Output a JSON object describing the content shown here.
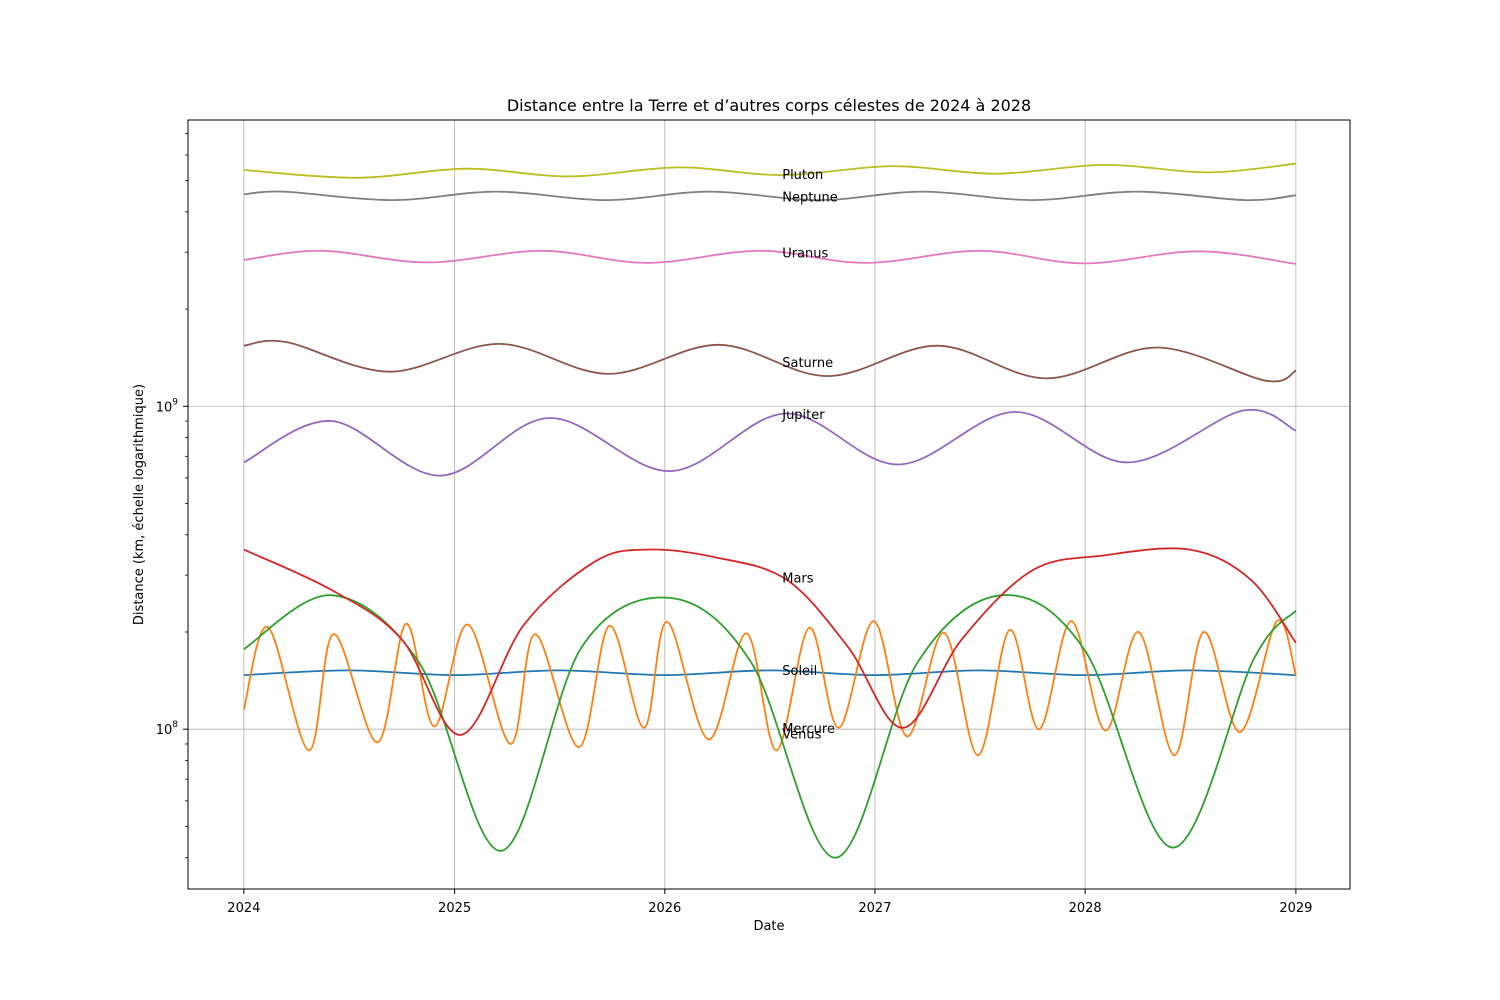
{
  "chart_data": {
    "type": "line",
    "title": "Distance entre la Terre et d’autres corps célestes de 2024 à 2028",
    "xlabel": "Date",
    "ylabel": "Distance (km, échelle logarithmique)",
    "x_axis": {
      "type": "date",
      "range": [
        "2023-09-26",
        "2029-04-05"
      ],
      "ticks": [
        "2024-01-01",
        "2025-01-01",
        "2026-01-01",
        "2027-01-01",
        "2028-01-01",
        "2029-01-01"
      ],
      "tick_labels": [
        "2024",
        "2025",
        "2026",
        "2027",
        "2028",
        "2029"
      ]
    },
    "y_axis": {
      "scale": "log",
      "range": [
        32000000,
        7700000000
      ],
      "major_ticks": [
        100000000,
        1000000000
      ],
      "tick_labels": [
        "10^8",
        "10^9"
      ]
    },
    "grid": true,
    "legend": "none",
    "label_date": "2026-07-24",
    "series": [
      {
        "name": "Soleil",
        "color": "#1f77b4",
        "points": [
          [
            "2024-01-01",
            147100000
          ],
          [
            "2024-07-01",
            152100000
          ],
          [
            "2025-01-01",
            147100000
          ],
          [
            "2025-07-01",
            152100000
          ],
          [
            "2026-01-01",
            147100000
          ],
          [
            "2026-07-01",
            152100000
          ],
          [
            "2027-01-01",
            147100000
          ],
          [
            "2027-07-01",
            152100000
          ],
          [
            "2028-01-01",
            147100000
          ],
          [
            "2028-07-01",
            152100000
          ],
          [
            "2029-01-01",
            147100000
          ]
        ]
      },
      {
        "name": "Mercure",
        "color": "#ff7f0e",
        "points": [
          [
            "2024-01-01",
            115000000
          ],
          [
            "2024-02-12",
            207000000
          ],
          [
            "2024-04-23",
            86000000
          ],
          [
            "2024-06-05",
            197000000
          ],
          [
            "2024-08-20",
            91000000
          ],
          [
            "2024-10-09",
            212000000
          ],
          [
            "2024-11-27",
            102000000
          ],
          [
            "2025-01-24",
            211000000
          ],
          [
            "2025-04-08",
            90000000
          ],
          [
            "2025-05-21",
            197000000
          ],
          [
            "2025-08-05",
            88000000
          ],
          [
            "2025-09-27",
            209000000
          ],
          [
            "2025-11-26",
            101000000
          ],
          [
            "2026-01-05",
            215000000
          ],
          [
            "2026-03-18",
            93000000
          ],
          [
            "2026-05-23",
            198000000
          ],
          [
            "2026-07-14",
            86000000
          ],
          [
            "2026-09-09",
            206000000
          ],
          [
            "2026-10-30",
            101000000
          ],
          [
            "2026-12-30",
            216000000
          ],
          [
            "2027-02-26",
            95000000
          ],
          [
            "2027-05-01",
            199000000
          ],
          [
            "2027-06-29",
            83000000
          ],
          [
            "2027-08-23",
            203000000
          ],
          [
            "2027-10-13",
            100000000
          ],
          [
            "2027-12-08",
            216000000
          ],
          [
            "2028-02-05",
            99000000
          ],
          [
            "2028-04-03",
            200000000
          ],
          [
            "2028-06-04",
            83000000
          ],
          [
            "2028-07-25",
            200000000
          ],
          [
            "2028-09-26",
            98000000
          ],
          [
            "2028-11-29",
            216000000
          ],
          [
            "2029-01-01",
            147000000
          ]
        ]
      },
      {
        "name": "Vénus",
        "color": "#2ca02c",
        "points": [
          [
            "2024-01-01",
            177000000
          ],
          [
            "2024-06-01",
            260000000
          ],
          [
            "2024-11-01",
            160000000
          ],
          [
            "2025-03-23",
            42000000
          ],
          [
            "2025-08-10",
            180000000
          ],
          [
            "2026-01-10",
            255000000
          ],
          [
            "2026-06-01",
            160000000
          ],
          [
            "2026-10-24",
            40000000
          ],
          [
            "2027-03-15",
            160000000
          ],
          [
            "2027-08-10",
            260000000
          ],
          [
            "2028-01-01",
            175000000
          ],
          [
            "2028-06-01",
            43000000
          ],
          [
            "2028-10-20",
            165000000
          ],
          [
            "2029-01-01",
            233000000
          ]
        ]
      },
      {
        "name": "Mars",
        "color": "#d62728",
        "points": [
          [
            "2024-01-01",
            360000000
          ],
          [
            "2024-06-01",
            270000000
          ],
          [
            "2024-10-01",
            190000000
          ],
          [
            "2025-01-12",
            96000000
          ],
          [
            "2025-05-01",
            210000000
          ],
          [
            "2025-09-01",
            330000000
          ],
          [
            "2025-12-01",
            360000000
          ],
          [
            "2026-04-01",
            340000000
          ],
          [
            "2026-08-01",
            290000000
          ],
          [
            "2026-11-15",
            180000000
          ],
          [
            "2027-02-19",
            101000000
          ],
          [
            "2027-06-01",
            190000000
          ],
          [
            "2027-10-01",
            310000000
          ],
          [
            "2028-02-01",
            345000000
          ],
          [
            "2028-07-01",
            360000000
          ],
          [
            "2028-10-15",
            290000000
          ],
          [
            "2029-01-01",
            185000000
          ]
        ]
      },
      {
        "name": "Jupiter",
        "color": "#9467bd",
        "points": [
          [
            "2024-01-01",
            670000000
          ],
          [
            "2024-06-01",
            900000000
          ],
          [
            "2024-12-07",
            610000000
          ],
          [
            "2025-06-15",
            920000000
          ],
          [
            "2026-01-10",
            630000000
          ],
          [
            "2026-07-30",
            950000000
          ],
          [
            "2027-02-10",
            660000000
          ],
          [
            "2027-09-01",
            960000000
          ],
          [
            "2028-03-15",
            670000000
          ],
          [
            "2028-10-01",
            970000000
          ],
          [
            "2029-01-01",
            840000000
          ]
        ]
      },
      {
        "name": "Saturne",
        "color": "#8c564b",
        "points": [
          [
            "2024-01-01",
            1540000000
          ],
          [
            "2024-03-15",
            1580000000
          ],
          [
            "2024-09-10",
            1280000000
          ],
          [
            "2025-03-20",
            1560000000
          ],
          [
            "2025-09-25",
            1260000000
          ],
          [
            "2026-04-05",
            1550000000
          ],
          [
            "2026-10-10",
            1240000000
          ],
          [
            "2027-04-20",
            1540000000
          ],
          [
            "2027-10-25",
            1220000000
          ],
          [
            "2028-05-05",
            1520000000
          ],
          [
            "2028-11-10",
            1200000000
          ],
          [
            "2029-01-01",
            1290000000
          ]
        ]
      },
      {
        "name": "Uranus",
        "color": "#e377c2",
        "points": [
          [
            "2024-01-01",
            2840000000
          ],
          [
            "2024-05-15",
            3030000000
          ],
          [
            "2024-11-15",
            2790000000
          ],
          [
            "2025-06-01",
            3030000000
          ],
          [
            "2025-12-01",
            2780000000
          ],
          [
            "2026-06-15",
            3030000000
          ],
          [
            "2026-12-15",
            2780000000
          ],
          [
            "2027-07-01",
            3030000000
          ],
          [
            "2027-12-30",
            2770000000
          ],
          [
            "2028-07-15",
            3020000000
          ],
          [
            "2029-01-01",
            2760000000
          ]
        ]
      },
      {
        "name": "Neptune",
        "color": "#7f7f7f",
        "points": [
          [
            "2024-01-01",
            4530000000
          ],
          [
            "2024-03-10",
            4620000000
          ],
          [
            "2024-09-15",
            4350000000
          ],
          [
            "2025-03-15",
            4620000000
          ],
          [
            "2025-09-20",
            4350000000
          ],
          [
            "2026-03-20",
            4620000000
          ],
          [
            "2026-09-25",
            4350000000
          ],
          [
            "2027-03-25",
            4620000000
          ],
          [
            "2027-09-30",
            4350000000
          ],
          [
            "2028-03-30",
            4620000000
          ],
          [
            "2028-10-05",
            4350000000
          ],
          [
            "2029-01-01",
            4500000000
          ]
        ]
      },
      {
        "name": "Pluton",
        "color": "#bcbd22",
        "points": [
          [
            "2024-01-01",
            5390000000
          ],
          [
            "2024-07-15",
            5100000000
          ],
          [
            "2025-01-20",
            5440000000
          ],
          [
            "2025-07-20",
            5150000000
          ],
          [
            "2026-01-25",
            5490000000
          ],
          [
            "2026-07-25",
            5200000000
          ],
          [
            "2027-01-30",
            5540000000
          ],
          [
            "2027-07-30",
            5250000000
          ],
          [
            "2028-02-05",
            5590000000
          ],
          [
            "2028-08-01",
            5300000000
          ],
          [
            "2029-01-01",
            5640000000
          ]
        ]
      }
    ]
  }
}
